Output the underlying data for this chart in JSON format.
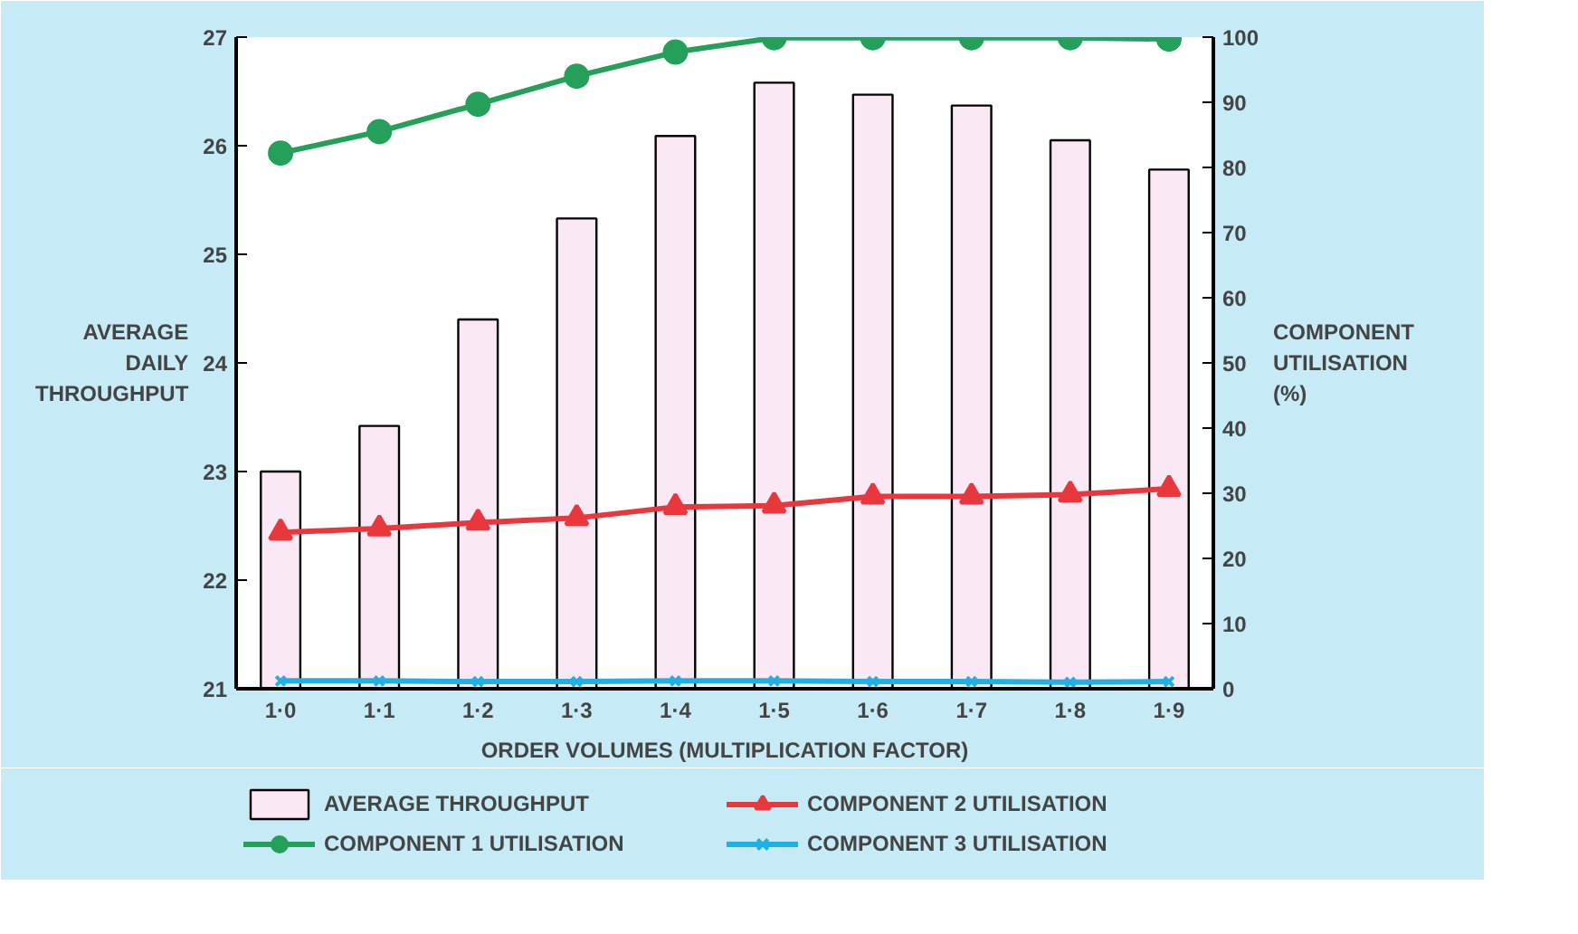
{
  "chart_data": {
    "type": "bar",
    "categories": [
      "1·0",
      "1·1",
      "1·2",
      "1·3",
      "1·4",
      "1·5",
      "1·6",
      "1·7",
      "1·8",
      "1·9"
    ],
    "xlabel": "ORDER VOLUMES (MULTIPLICATION FACTOR)",
    "ylabel": "AVERAGE DAILY THROUGHPUT",
    "y2label": "COMPONENT UTILISATION (%)",
    "ylim": [
      21,
      27
    ],
    "yticks": [
      21,
      22,
      23,
      24,
      25,
      26,
      27
    ],
    "y2lim": [
      0,
      100
    ],
    "y2ticks": [
      0,
      10,
      20,
      30,
      40,
      50,
      60,
      70,
      80,
      90,
      100
    ],
    "legend": "bottom",
    "grid": false,
    "series": [
      {
        "name": "AVERAGE THROUGHPUT",
        "color": "#fae8f4",
        "values": [
          23.0,
          23.42,
          24.4,
          25.33,
          26.09,
          26.58,
          26.47,
          26.37,
          26.05,
          25.78
        ]
      },
      {
        "name": "COMPONENT 1 UTILISATION",
        "type": "line",
        "axis": "y2",
        "marker": "circle",
        "color": "#25a05a",
        "values": [
          82.2,
          85.5,
          89.7,
          94.0,
          97.7,
          99.9,
          99.9,
          99.9,
          99.9,
          99.7
        ]
      },
      {
        "name": "COMPONENT 2 UTILISATION",
        "type": "line",
        "axis": "y2",
        "marker": "triangle",
        "color": "#e8383d",
        "values": [
          24.0,
          24.6,
          25.5,
          26.2,
          27.9,
          28.1,
          29.5,
          29.5,
          29.8,
          30.7
        ]
      },
      {
        "name": "COMPONENT 3 UTILISATION",
        "type": "line",
        "axis": "y2",
        "marker": "cross",
        "color": "#1fb0e6",
        "values": [
          1.2,
          1.2,
          1.1,
          1.1,
          1.2,
          1.2,
          1.1,
          1.1,
          1.0,
          1.1
        ]
      }
    ]
  }
}
